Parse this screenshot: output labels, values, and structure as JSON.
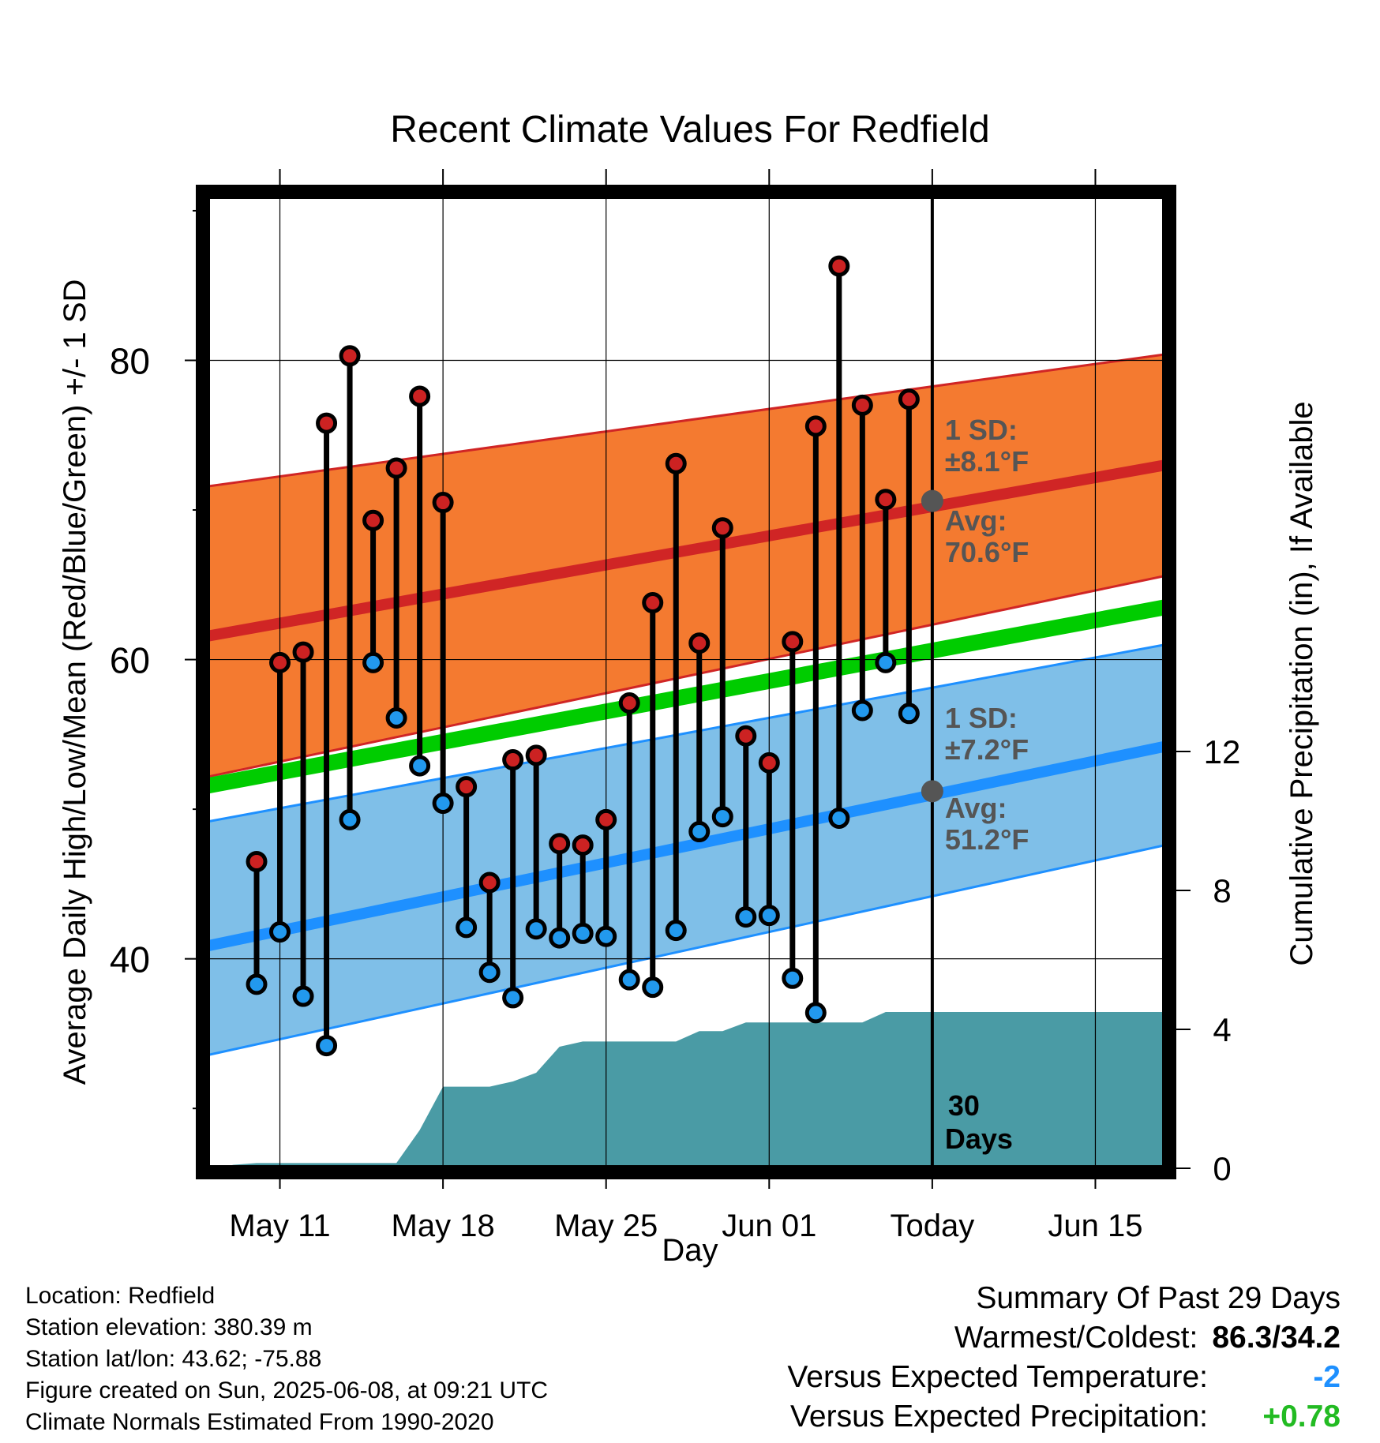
{
  "chart_data": {
    "type": "line",
    "title": "Recent Climate Values For Redfield",
    "xlabel": "Day",
    "ylabel_left": "Average Daily High/Low/Mean (Red/Blue/Green) +/- 1 SD",
    "ylabel_right": "Cumulative Precipitation (in), If Available",
    "ylim_left": [
      26,
      91
    ],
    "ylim_right": [
      0,
      28
    ],
    "x_tick_labels": [
      {
        "day": 11,
        "label": "May 11"
      },
      {
        "day": 18,
        "label": "May 18"
      },
      {
        "day": 25,
        "label": "May 25"
      },
      {
        "day": 32,
        "label": "Jun 01"
      },
      {
        "day": 39,
        "label": "Today"
      },
      {
        "day": 46,
        "label": "Jun 15"
      }
    ],
    "y_left_ticks": [
      40,
      60,
      80
    ],
    "y_right_ticks": [
      0,
      4,
      8,
      12
    ],
    "normals": {
      "x": [
        8,
        49
      ],
      "high_mean": [
        61.6,
        73.0
      ],
      "high_upper": [
        71.6,
        80.4
      ],
      "high_lower": [
        52.2,
        65.6
      ],
      "mean": [
        51.6,
        63.5
      ],
      "low_mean": [
        40.9,
        54.2
      ],
      "low_upper": [
        49.2,
        61.0
      ],
      "low_lower": [
        33.6,
        47.6
      ]
    },
    "daily_highs": [
      46.5,
      59.8,
      60.5,
      75.8,
      80.3,
      69.3,
      72.8,
      77.6,
      70.5,
      51.5,
      45.1,
      53.3,
      53.6,
      47.7,
      47.6,
      49.3,
      57.1,
      63.8,
      73.1,
      61.1,
      68.8,
      54.9,
      53.1,
      61.2,
      75.6,
      86.3,
      77.0,
      70.7,
      77.4
    ],
    "daily_lows": [
      38.3,
      41.8,
      37.5,
      34.2,
      49.3,
      59.8,
      56.1,
      52.9,
      50.4,
      42.1,
      39.1,
      37.4,
      42.0,
      41.4,
      41.7,
      41.5,
      38.6,
      38.1,
      41.9,
      48.5,
      49.5,
      42.8,
      42.9,
      38.7,
      36.4,
      49.4,
      56.6,
      59.8,
      56.4
    ],
    "precip_cumulative": {
      "x": [
        8.3,
        9,
        10,
        11,
        12,
        13,
        14,
        15,
        16,
        17,
        18,
        19,
        20,
        21,
        22,
        23,
        24,
        25,
        26,
        27,
        28,
        29,
        30,
        31,
        32,
        33,
        34,
        35,
        36,
        37,
        38,
        39,
        40,
        49
      ],
      "y": [
        0,
        0.1,
        0.15,
        0.15,
        0.15,
        0.15,
        0.15,
        0.15,
        0.15,
        1.1,
        2.35,
        2.35,
        2.35,
        2.5,
        2.75,
        3.5,
        3.65,
        3.65,
        3.65,
        3.65,
        3.65,
        3.95,
        3.95,
        4.2,
        4.2,
        4.2,
        4.2,
        4.2,
        4.2,
        4.5,
        4.5,
        4.5,
        4.5,
        4.5
      ]
    },
    "annotations": {
      "high_sd_line1": "1 SD:",
      "high_sd_line2": "±8.1°F",
      "high_avg_line1": "Avg:",
      "high_avg_line2": "70.6°F",
      "low_sd_line1": "1 SD:",
      "low_sd_line2": "±7.2°F",
      "low_avg_line1": "Avg:",
      "low_avg_line2": "51.2°F",
      "days_line1": "30",
      "days_line2": "Days"
    },
    "colors": {
      "high_band": "#f47a30",
      "high_line": "#d02525",
      "low_band": "#7fbfe8",
      "low_line": "#1e90ff",
      "mean_line": "#00cc00",
      "precip": "#4a9ba5",
      "high_dot": "#cc2222",
      "low_dot": "#2299ee",
      "annotation": "#555555"
    }
  },
  "footer_left": {
    "location": "Location: Redfield",
    "elevation": "Station elevation: 380.39 m",
    "latlon": "Station lat/lon: 43.62; -75.88",
    "created": "Figure created on Sun, 2025-06-08, at 09:21 UTC",
    "normals": "Climate Normals Estimated From 1990-2020"
  },
  "summary": {
    "title": "Summary Of Past 29 Days",
    "warmest_label": "Warmest/Coldest:",
    "warmest_value": "86.3/34.2",
    "temp_label": "Versus Expected Temperature:",
    "temp_value": "-2",
    "temp_color": "#1e90ff",
    "precip_label": "Versus Expected Precipitation:",
    "precip_value": "+0.78",
    "precip_color": "#22bb22"
  }
}
